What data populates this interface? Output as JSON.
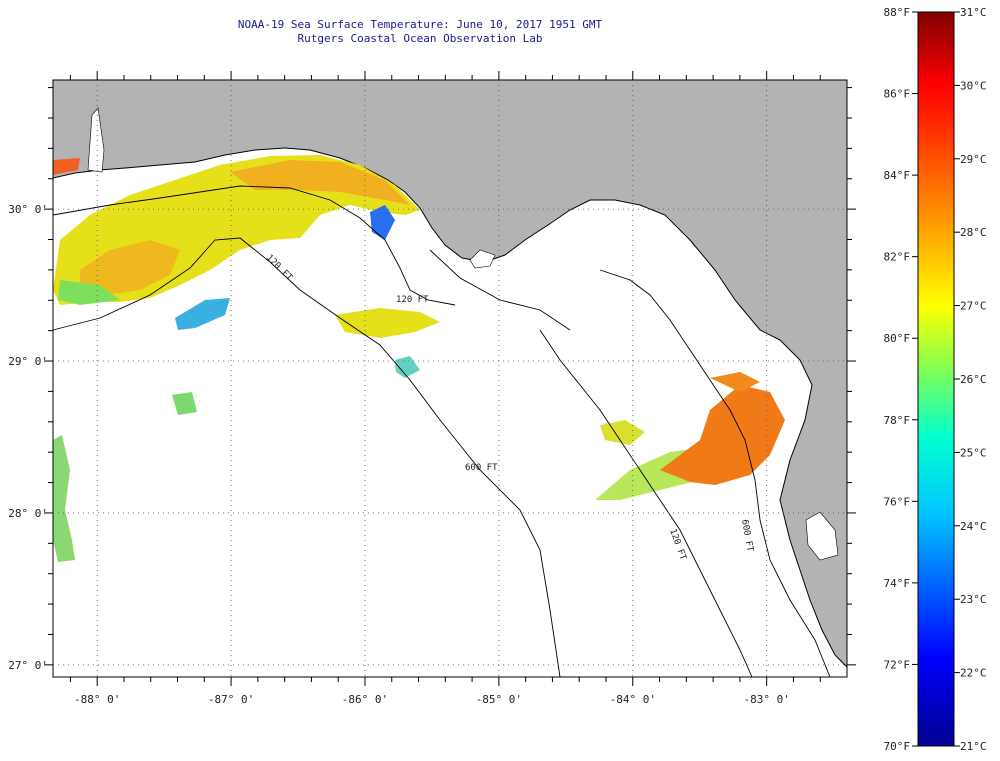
{
  "title": {
    "line1": "NOAA-19 Sea Surface Temperature:  June 10, 2017 1951 GMT",
    "line2": "Rutgers Coastal Ocean Observation Lab"
  },
  "map": {
    "lon_range": [
      -88.33,
      -82.4
    ],
    "lat_range": [
      26.92,
      30.85
    ],
    "lon_ticks": [
      {
        "value": -88,
        "label": "-88° 0'"
      },
      {
        "value": -87,
        "label": "-87° 0'"
      },
      {
        "value": -86,
        "label": "-86° 0'"
      },
      {
        "value": -85,
        "label": "-85° 0'"
      },
      {
        "value": -84,
        "label": "-84° 0'"
      },
      {
        "value": -83,
        "label": "-83° 0'"
      }
    ],
    "lat_ticks": [
      {
        "value": 30,
        "label": "30° 0'"
      },
      {
        "value": 29,
        "label": "29° 0'"
      },
      {
        "value": 28,
        "label": "28° 0'"
      },
      {
        "value": 27,
        "label": "27° 0'"
      }
    ],
    "isobaths": [
      "120 FT",
      "600 FT",
      "120 FT",
      "600 FT",
      "120 FT"
    ],
    "land_color": "#b3b3b3",
    "water_color": "#ffffff"
  },
  "colorbar": {
    "f_labels": [
      {
        "value": 88,
        "label": "88°F"
      },
      {
        "value": 86,
        "label": "86°F"
      },
      {
        "value": 84,
        "label": "84°F"
      },
      {
        "value": 82,
        "label": "82°F"
      },
      {
        "value": 80,
        "label": "80°F"
      },
      {
        "value": 78,
        "label": "78°F"
      },
      {
        "value": 76,
        "label": "76°F"
      },
      {
        "value": 74,
        "label": "74°F"
      },
      {
        "value": 72,
        "label": "72°F"
      },
      {
        "value": 70,
        "label": "70°F"
      }
    ],
    "c_labels": [
      {
        "value": 31,
        "label": "31°C"
      },
      {
        "value": 30,
        "label": "30°C"
      },
      {
        "value": 29,
        "label": "29°C"
      },
      {
        "value": 28,
        "label": "28°C"
      },
      {
        "value": 27,
        "label": "27°C"
      },
      {
        "value": 26,
        "label": "26°C"
      },
      {
        "value": 25,
        "label": "25°C"
      },
      {
        "value": 24,
        "label": "24°C"
      },
      {
        "value": 23,
        "label": "23°C"
      },
      {
        "value": 22,
        "label": "22°C"
      },
      {
        "value": 21,
        "label": "21°C"
      }
    ]
  }
}
